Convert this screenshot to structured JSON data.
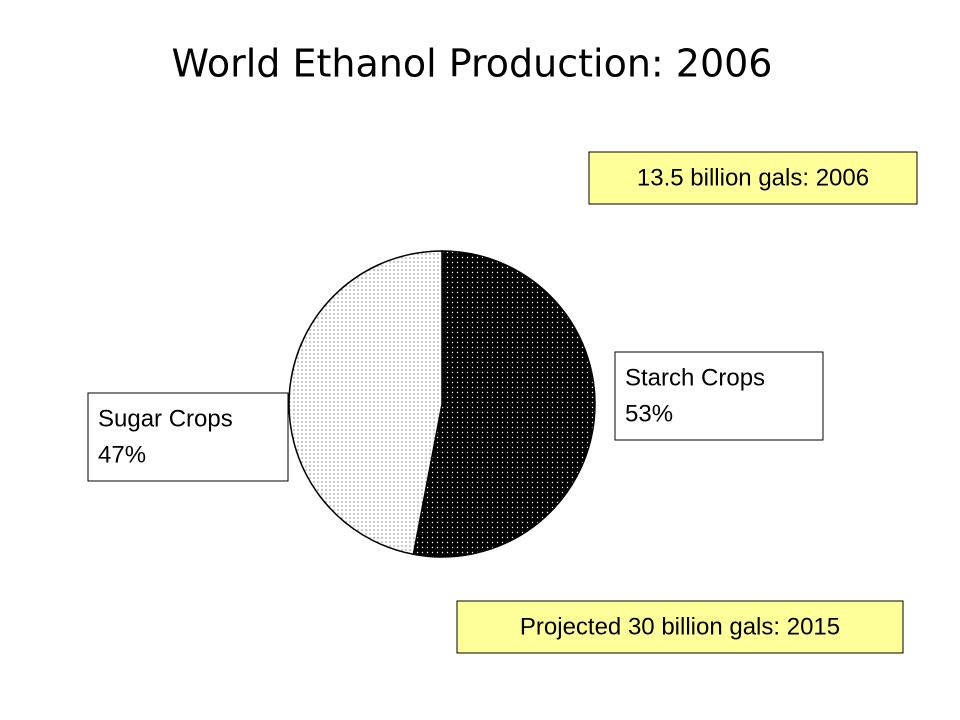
{
  "chart_data": {
    "type": "pie",
    "title": "World Ethanol Production: 2006",
    "categories": [
      "Starch Crops",
      "Sugar Crops"
    ],
    "values": [
      53,
      47
    ],
    "value_labels": [
      "53%",
      "47%"
    ],
    "colors": [
      "#000000",
      "#ffffff"
    ],
    "annotations": [
      "13.5 billion gals: 2006",
      "Projected 30 billion gals: 2015"
    ]
  }
}
